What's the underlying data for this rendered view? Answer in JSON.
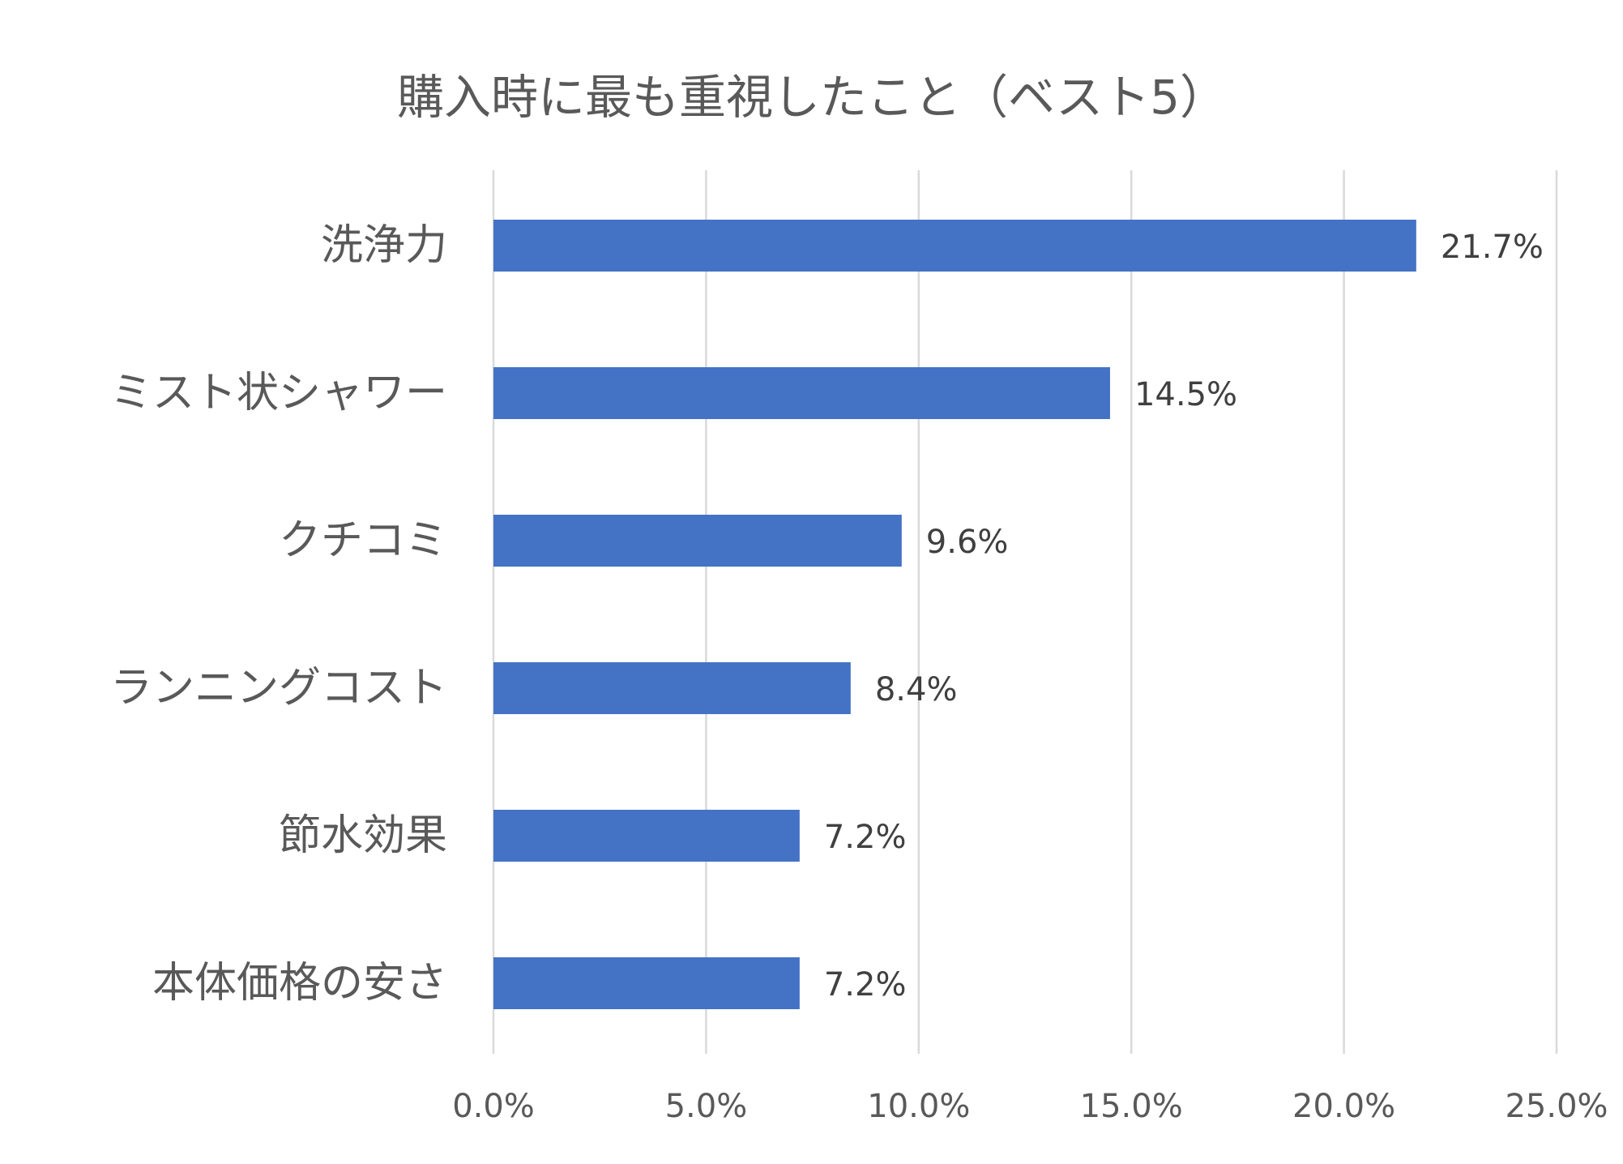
{
  "chart_data": {
    "type": "bar",
    "orientation": "horizontal",
    "title": "購入時に最も重視したこと（ベスト5）",
    "categories": [
      "洗浄力",
      "ミスト状シャワー",
      "クチコミ",
      "ランニングコスト",
      "節水効果",
      "本体価格の安さ"
    ],
    "values": [
      21.7,
      14.5,
      9.6,
      8.4,
      7.2,
      7.2
    ],
    "value_labels": [
      "21.7%",
      "14.5%",
      "9.6%",
      "8.4%",
      "7.2%",
      "7.2%"
    ],
    "x_ticks": [
      0,
      5,
      10,
      15,
      20,
      25
    ],
    "x_tick_labels": [
      "0.0%",
      "5.0%",
      "10.0%",
      "15.0%",
      "20.0%",
      "25.0%"
    ],
    "xlim": [
      0,
      25
    ],
    "xlabel": "",
    "ylabel": "",
    "grid": "vertical",
    "legend": "none",
    "bar_color": "#4472c4"
  }
}
